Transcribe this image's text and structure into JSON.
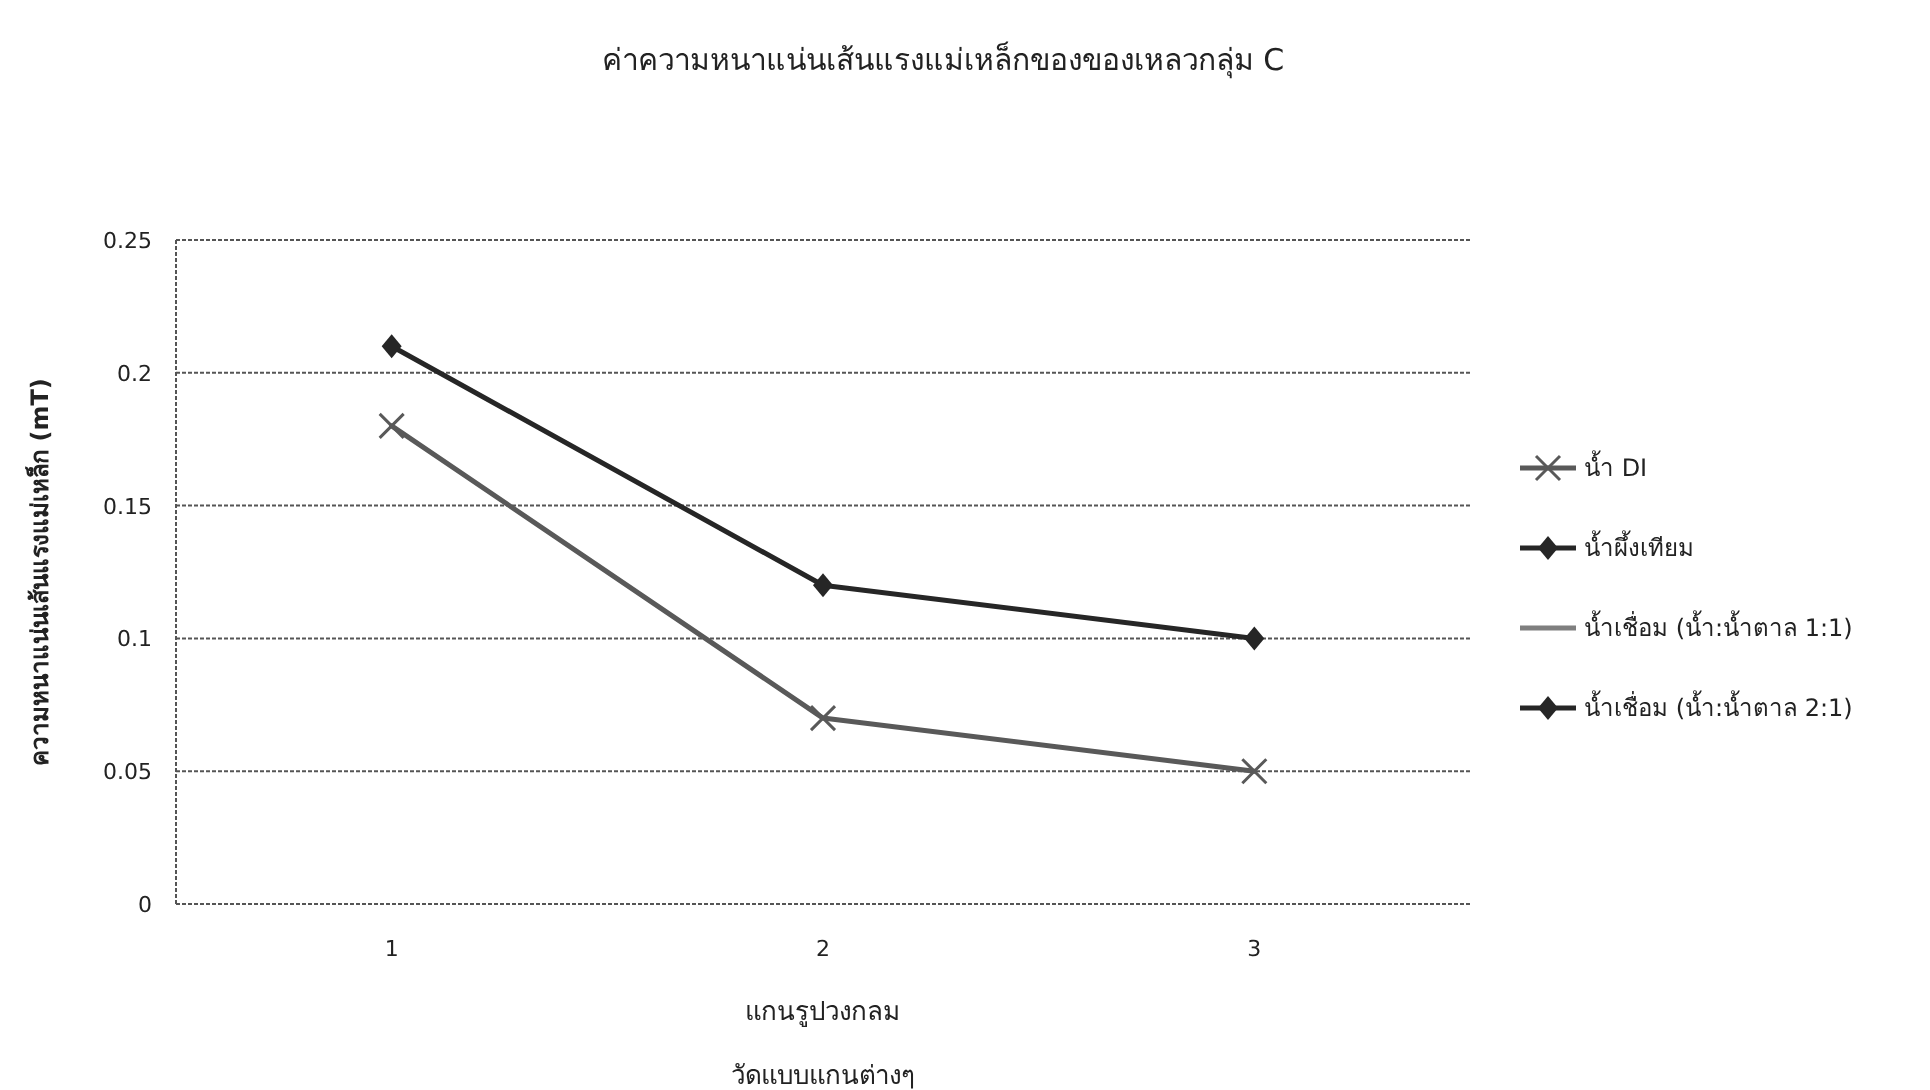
{
  "chart_data": {
    "type": "line",
    "title": "ค่าความหนาแน่นเส้นแรงแม่เหล็กของของเหลวกลุ่ม C",
    "xlabel": "แกนรูปวงกลม\nวัดแบบแกนต่างๆ",
    "ylabel": "ความหนาแน่นเส้นแรงแม่เหล็ก (mT)",
    "categories": [
      "1",
      "2",
      "3"
    ],
    "series": [
      {
        "name": "น้ำ DI",
        "color": "#595959",
        "marker": "cross",
        "values": [
          0.18,
          0.07,
          0.05
        ]
      },
      {
        "name": "น้ำผึ้งเทียม",
        "color": "#262626",
        "marker": "diamond",
        "values": [
          0.21,
          0.12,
          0.1
        ]
      },
      {
        "name": "น้ำเชื่อม (น้ำ:น้ำตาล 1:1)",
        "color": "#7f7f7f",
        "marker": "none",
        "values": [
          null,
          null,
          null
        ]
      },
      {
        "name": "น้ำเชื่อม (น้ำ:น้ำตาล 2:1)",
        "color": "#262626",
        "marker": "diamond",
        "values": [
          null,
          null,
          null
        ]
      }
    ],
    "ylim": [
      0,
      0.25
    ],
    "yticks": [
      0,
      0.05,
      0.1,
      0.15,
      0.2,
      0.25
    ],
    "grid": "y",
    "legend": "right"
  }
}
